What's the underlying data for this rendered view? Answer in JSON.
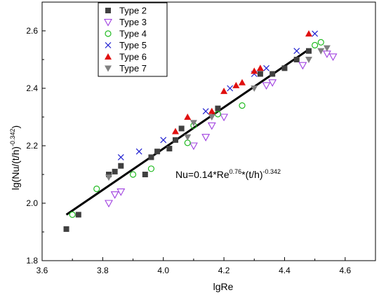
{
  "chart_data": {
    "type": "scatter",
    "xlabel": "lgRe",
    "ylabel_main": "lg(Nu/(t/h)",
    "ylabel_sup": "-0.342",
    "ylabel_close": ")",
    "xlim": [
      3.6,
      4.7
    ],
    "ylim": [
      1.8,
      2.7
    ],
    "xticks": [
      3.6,
      3.8,
      4.0,
      4.2,
      4.4,
      4.6
    ],
    "xtick_labels": [
      "3.6",
      "3.8",
      "4.0",
      "4.2",
      "4.4",
      "4.6"
    ],
    "yticks": [
      1.8,
      2.0,
      2.2,
      2.4,
      2.6
    ],
    "ytick_labels": [
      "1.8",
      "2.0",
      "2.2",
      "2.4",
      "2.6"
    ],
    "grid": false,
    "legend_position": "top-left",
    "annotation": {
      "parts": [
        "Nu=0.14*Re",
        "0.76",
        "*(t/h)",
        "-0.342"
      ]
    },
    "fit_line": {
      "x": [
        3.68,
        4.48
      ],
      "y": [
        1.96,
        2.535
      ],
      "color": "#000000"
    },
    "series": [
      {
        "name": "Type 2",
        "marker": "square",
        "color": "#404040",
        "points": [
          [
            3.68,
            1.91
          ],
          [
            3.72,
            1.96
          ],
          [
            3.82,
            2.1
          ],
          [
            3.84,
            2.11
          ],
          [
            3.86,
            2.13
          ],
          [
            3.94,
            2.1
          ],
          [
            3.96,
            2.16
          ],
          [
            3.98,
            2.18
          ],
          [
            4.02,
            2.19
          ],
          [
            4.04,
            2.22
          ],
          [
            4.06,
            2.26
          ],
          [
            4.18,
            2.33
          ],
          [
            4.32,
            2.45
          ],
          [
            4.36,
            2.45
          ],
          [
            4.4,
            2.47
          ],
          [
            4.44,
            2.5
          ],
          [
            4.48,
            2.53
          ]
        ]
      },
      {
        "name": "Type 3",
        "marker": "triangle-down-open",
        "color": "#a040e0",
        "points": [
          [
            3.82,
            2.0
          ],
          [
            3.84,
            2.03
          ],
          [
            3.86,
            2.04
          ],
          [
            4.1,
            2.2
          ],
          [
            4.14,
            2.23
          ],
          [
            4.16,
            2.27
          ],
          [
            4.2,
            2.3
          ],
          [
            4.34,
            2.41
          ],
          [
            4.36,
            2.42
          ],
          [
            4.46,
            2.48
          ],
          [
            4.54,
            2.52
          ],
          [
            4.56,
            2.51
          ]
        ]
      },
      {
        "name": "Type 4",
        "marker": "circle-open",
        "color": "#22bb22",
        "points": [
          [
            3.7,
            1.96
          ],
          [
            3.78,
            2.05
          ],
          [
            3.9,
            2.1
          ],
          [
            3.96,
            2.12
          ],
          [
            4.08,
            2.21
          ],
          [
            4.1,
            2.27
          ],
          [
            4.18,
            2.31
          ],
          [
            4.26,
            2.34
          ],
          [
            4.5,
            2.55
          ],
          [
            4.52,
            2.56
          ]
        ]
      },
      {
        "name": "Type 5",
        "marker": "x",
        "color": "#2020d0",
        "points": [
          [
            3.86,
            2.16
          ],
          [
            3.92,
            2.18
          ],
          [
            4.0,
            2.22
          ],
          [
            4.14,
            2.32
          ],
          [
            4.22,
            2.4
          ],
          [
            4.3,
            2.45
          ],
          [
            4.34,
            2.47
          ],
          [
            4.44,
            2.53
          ],
          [
            4.5,
            2.59
          ]
        ]
      },
      {
        "name": "Type 6",
        "marker": "triangle-up-filled",
        "color": "#e01010",
        "points": [
          [
            4.04,
            2.25
          ],
          [
            4.08,
            2.3
          ],
          [
            4.16,
            2.32
          ],
          [
            4.2,
            2.39
          ],
          [
            4.24,
            2.41
          ],
          [
            4.26,
            2.42
          ],
          [
            4.3,
            2.46
          ],
          [
            4.32,
            2.47
          ],
          [
            4.48,
            2.59
          ]
        ]
      },
      {
        "name": "Type 7",
        "marker": "triangle-down-filled",
        "color": "#808080",
        "points": [
          [
            3.82,
            2.09
          ],
          [
            4.08,
            2.23
          ],
          [
            4.1,
            2.28
          ],
          [
            4.16,
            2.3
          ],
          [
            4.3,
            2.4
          ],
          [
            4.48,
            2.5
          ],
          [
            4.52,
            2.53
          ],
          [
            4.54,
            2.54
          ]
        ]
      }
    ]
  }
}
